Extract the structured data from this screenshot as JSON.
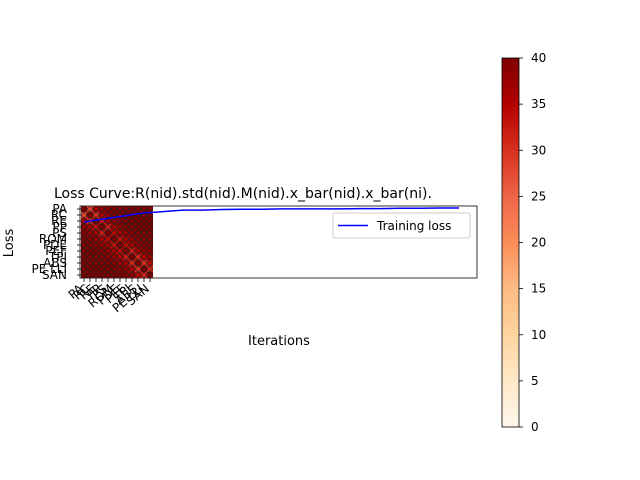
{
  "chart_data": {
    "type": "line",
    "title": "Loss Curve:R(nid).std(nid).M(nid).x_bar(nid).x_bar(ni).",
    "xlabel": "Iterations",
    "ylabel": "Loss",
    "legend": {
      "position": "upper-right",
      "entries": [
        "Training loss"
      ]
    },
    "series": [
      {
        "name": "Training loss",
        "color": "#0000ff",
        "y": [
          0.6,
          0.7,
          0.8,
          0.9,
          0.95,
          1.0,
          1.0,
          1.02,
          1.03,
          1.03,
          1.04,
          1.04,
          1.04,
          1.04,
          1.05,
          1.05,
          1.06,
          1.06,
          1.07,
          1.07
        ]
      }
    ],
    "heatmap": {
      "colormap": "OrRd",
      "row_labels": [
        "PA",
        "RC",
        "RE",
        "PP",
        "PS",
        "ROM",
        "PDE",
        "PEF",
        "TPJ",
        "ABS",
        "PE LLI",
        "SAN"
      ],
      "col_labels": [
        "PA",
        "RC",
        "RE",
        "PP",
        "PS",
        "ROM",
        "PDE",
        "PEF",
        "TPJ",
        "ABS",
        "PE LLI",
        "SAN"
      ],
      "values": [
        [
          40,
          28,
          36,
          38,
          39,
          40,
          40,
          40,
          40,
          40,
          40,
          40
        ],
        [
          28,
          40,
          30,
          36,
          38,
          39,
          40,
          40,
          40,
          40,
          40,
          40
        ],
        [
          36,
          30,
          40,
          33,
          37,
          38,
          39,
          40,
          40,
          40,
          40,
          40
        ],
        [
          38,
          36,
          33,
          40,
          32,
          36,
          38,
          39,
          40,
          40,
          40,
          40
        ],
        [
          39,
          38,
          37,
          32,
          40,
          34,
          37,
          38,
          39,
          40,
          40,
          40
        ],
        [
          40,
          39,
          38,
          36,
          34,
          40,
          33,
          36,
          38,
          39,
          40,
          40
        ],
        [
          40,
          40,
          39,
          38,
          37,
          33,
          40,
          34,
          36,
          38,
          39,
          40
        ],
        [
          40,
          40,
          40,
          39,
          38,
          36,
          34,
          40,
          32,
          36,
          38,
          39
        ],
        [
          40,
          40,
          40,
          40,
          39,
          38,
          36,
          32,
          40,
          31,
          35,
          38
        ],
        [
          40,
          40,
          40,
          40,
          40,
          39,
          38,
          36,
          31,
          40,
          30,
          34
        ],
        [
          40,
          40,
          40,
          40,
          40,
          40,
          39,
          38,
          35,
          30,
          40,
          31
        ],
        [
          40,
          40,
          40,
          40,
          40,
          40,
          40,
          39,
          38,
          34,
          31,
          40
        ]
      ]
    },
    "colorbar": {
      "min": 0,
      "max": 40,
      "ticks": [
        "0",
        "5",
        "10",
        "15",
        "20",
        "25",
        "30",
        "35",
        "40"
      ]
    }
  }
}
